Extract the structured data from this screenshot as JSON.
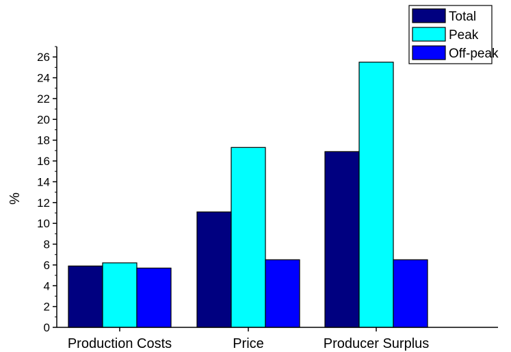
{
  "chart_data": {
    "type": "bar",
    "title": "",
    "xlabel": "",
    "ylabel": "%",
    "ylim": [
      0,
      27
    ],
    "yticks": [
      0,
      2,
      4,
      6,
      8,
      10,
      12,
      14,
      16,
      18,
      20,
      22,
      24,
      26
    ],
    "categories": [
      "Production Costs",
      "Price",
      "Producer Surplus"
    ],
    "series": [
      {
        "name": "Total",
        "color": "#000080",
        "values": [
          5.9,
          11.1,
          16.9
        ]
      },
      {
        "name": "Peak",
        "color": "#00ffff",
        "values": [
          6.2,
          17.3,
          25.5
        ]
      },
      {
        "name": "Off-peak",
        "color": "#0000ff",
        "values": [
          5.7,
          6.5,
          6.5
        ]
      }
    ],
    "grid": false,
    "legend": "top-right"
  }
}
